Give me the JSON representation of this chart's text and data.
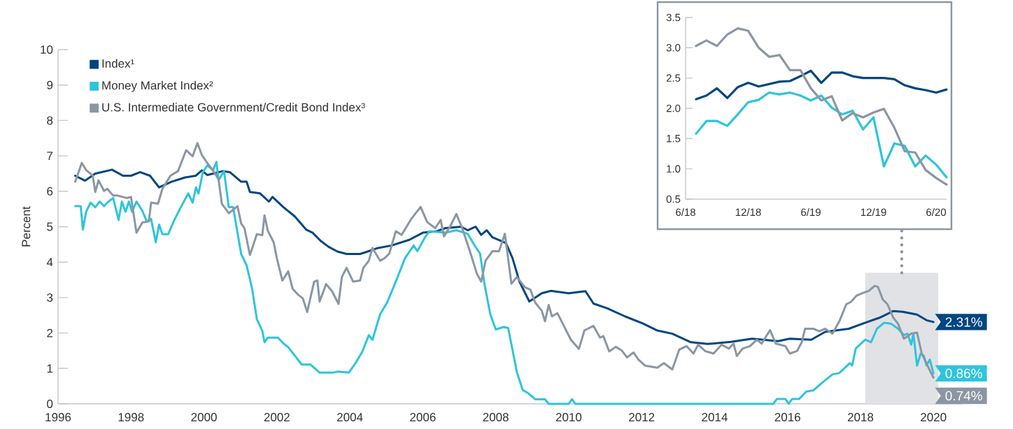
{
  "chart_data": [
    {
      "type": "line",
      "ylabel": "Percent",
      "xlim": [
        1996,
        2020.8
      ],
      "ylim": [
        0,
        10
      ],
      "xticks": [
        1996,
        1998,
        2000,
        2002,
        2004,
        2006,
        2008,
        2010,
        2012,
        2014,
        2016,
        2018,
        2020
      ],
      "yticks": [
        0,
        1,
        2,
        3,
        4,
        5,
        6,
        7,
        8,
        9,
        10
      ],
      "legend": "top left",
      "series": [
        {
          "name": "Index¹",
          "color": "#00467f",
          "x": [
            1996.47,
            1996.74,
            1997.02,
            1997.48,
            1997.78,
            1998.0,
            1998.25,
            1998.52,
            1998.77,
            1999.11,
            1999.48,
            1999.78,
            1999.94,
            2000.09,
            2000.52,
            2000.71,
            2001.02,
            2001.17,
            2001.26,
            2001.54,
            2001.78,
            2001.88,
            2002.18,
            2002.49,
            2002.8,
            2002.98,
            2003.2,
            2003.42,
            2003.66,
            2003.91,
            2004.28,
            2004.49,
            2004.77,
            2005.14,
            2005.63,
            2006.0,
            2006.37,
            2006.62,
            2007.05,
            2007.23,
            2007.45,
            2007.6,
            2007.75,
            2007.91,
            2008.28,
            2008.46,
            2008.65,
            2008.92,
            2009.26,
            2009.51,
            2010.0,
            2010.46,
            2010.68,
            2011.05,
            2011.54,
            2012.03,
            2012.43,
            2012.84,
            2013.35,
            2013.81,
            2014.45,
            2015.03,
            2015.74,
            2016.06,
            2016.65,
            2017.03,
            2017.68,
            2018.13,
            2018.52,
            2018.9,
            2019.16,
            2019.55,
            2019.81,
            2020.0
          ],
          "values": [
            6.44,
            6.3,
            6.5,
            6.61,
            6.44,
            6.44,
            6.54,
            6.44,
            6.11,
            6.27,
            6.39,
            6.44,
            6.59,
            6.46,
            6.57,
            6.54,
            6.27,
            6.27,
            5.98,
            5.94,
            5.71,
            5.84,
            5.55,
            5.29,
            4.92,
            4.83,
            4.6,
            4.43,
            4.3,
            4.23,
            4.23,
            4.3,
            4.4,
            4.47,
            4.63,
            4.83,
            4.87,
            4.96,
            5.0,
            4.9,
            5.0,
            4.77,
            4.9,
            4.7,
            4.54,
            4.11,
            3.45,
            2.89,
            3.12,
            3.19,
            3.12,
            3.18,
            2.83,
            2.7,
            2.47,
            2.27,
            2.07,
            1.98,
            1.74,
            1.69,
            1.75,
            1.84,
            1.77,
            1.84,
            1.81,
            2.03,
            2.12,
            2.29,
            2.43,
            2.62,
            2.6,
            2.52,
            2.36,
            2.31
          ],
          "value_labels": [
            null,
            null,
            null,
            null,
            null,
            null,
            null,
            null,
            null,
            null,
            null,
            null,
            null,
            null,
            null,
            null,
            null,
            null,
            null,
            null,
            null,
            null,
            null,
            null,
            null,
            null,
            null,
            null,
            null,
            null,
            null,
            null,
            null,
            null,
            null,
            null,
            null,
            null,
            null,
            null,
            null,
            null,
            null,
            null,
            null,
            null,
            null,
            null,
            null,
            null,
            null,
            null,
            null,
            null,
            null,
            null,
            null,
            null,
            null,
            null,
            null,
            null,
            null,
            null,
            null,
            null,
            null,
            null,
            null,
            null,
            null,
            null,
            null,
            "2.31%"
          ]
        },
        {
          "name": "Money Market Index²",
          "color": "#2ec4dc",
          "x": [
            1996.47,
            1996.62,
            1996.68,
            1996.77,
            1996.89,
            1997.02,
            1997.14,
            1997.26,
            1997.38,
            1997.51,
            1997.66,
            1997.75,
            1997.85,
            1997.94,
            1998.03,
            1998.15,
            1998.31,
            1998.43,
            1998.55,
            1998.68,
            1998.77,
            1998.86,
            1999.02,
            1999.17,
            1999.35,
            1999.57,
            1999.69,
            1999.78,
            1999.85,
            1999.97,
            2000.09,
            2000.25,
            2000.34,
            2000.4,
            2000.55,
            2000.68,
            2000.8,
            2001.02,
            2001.17,
            2001.32,
            2001.45,
            2001.6,
            2001.66,
            2001.75,
            2002.03,
            2002.18,
            2002.31,
            2002.68,
            2002.92,
            2003.17,
            2003.54,
            2003.66,
            2003.97,
            2004.15,
            2004.34,
            2004.52,
            2004.62,
            2004.83,
            2005.02,
            2005.26,
            2005.51,
            2005.75,
            2005.85,
            2006.06,
            2006.18,
            2006.62,
            2006.92,
            2007.23,
            2007.42,
            2007.57,
            2007.69,
            2007.85,
            2008.0,
            2008.22,
            2008.34,
            2008.58,
            2008.74,
            2008.89,
            2009.08,
            2009.35,
            2009.45,
            2010.0,
            2010.09,
            2010.18,
            2015.61,
            2015.71,
            2015.94,
            2016.03,
            2016.13,
            2016.32,
            2016.52,
            2016.71,
            2016.94,
            2017.23,
            2017.42,
            2017.71,
            2017.77,
            2017.87,
            2018.13,
            2018.29,
            2018.45,
            2018.65,
            2018.84,
            2019.03,
            2019.19,
            2019.29,
            2019.39,
            2019.45,
            2019.55,
            2019.65,
            2019.74,
            2019.81,
            2019.9,
            2020.0
          ],
          "values": [
            5.58,
            5.58,
            4.92,
            5.42,
            5.68,
            5.55,
            5.71,
            5.58,
            5.71,
            5.81,
            5.19,
            5.71,
            5.42,
            5.71,
            5.42,
            5.71,
            5.45,
            5.15,
            5.22,
            4.56,
            5.06,
            4.79,
            4.79,
            5.15,
            5.52,
            5.94,
            5.68,
            6.11,
            5.94,
            6.54,
            6.73,
            6.6,
            6.83,
            6.31,
            6.57,
            5.55,
            5.55,
            4.23,
            3.91,
            3.25,
            2.39,
            2.06,
            1.74,
            1.87,
            1.87,
            1.7,
            1.6,
            1.11,
            1.11,
            0.88,
            0.88,
            0.91,
            0.88,
            1.14,
            1.47,
            1.94,
            1.81,
            2.53,
            2.86,
            3.45,
            4.11,
            4.47,
            4.31,
            4.7,
            4.87,
            4.83,
            4.9,
            4.8,
            4.47,
            4.24,
            3.39,
            2.53,
            2.1,
            2.17,
            2.14,
            0.89,
            0.39,
            0.3,
            0.13,
            0.13,
            0,
            0,
            0.13,
            0,
            0,
            0.14,
            0.14,
            0,
            0.14,
            0.14,
            0.35,
            0.38,
            0.59,
            0.83,
            0.87,
            1.15,
            1.08,
            1.56,
            1.81,
            1.74,
            2.12,
            2.29,
            2.26,
            2.12,
            1.94,
            1.98,
            1.67,
            1.98,
            1.08,
            1.42,
            1.35,
            1.08,
            1.25,
            0.86
          ],
          "value_labels": [
            null,
            null,
            null,
            null,
            null,
            null,
            null,
            null,
            null,
            null,
            null,
            null,
            null,
            null,
            null,
            null,
            null,
            null,
            null,
            null,
            null,
            null,
            null,
            null,
            null,
            null,
            null,
            null,
            null,
            null,
            null,
            null,
            null,
            null,
            null,
            null,
            null,
            null,
            null,
            null,
            null,
            null,
            null,
            null,
            null,
            null,
            null,
            null,
            null,
            null,
            null,
            null,
            null,
            null,
            null,
            null,
            null,
            null,
            null,
            null,
            null,
            null,
            null,
            null,
            null,
            null,
            null,
            null,
            null,
            null,
            null,
            null,
            null,
            null,
            null,
            null,
            null,
            null,
            null,
            null,
            null,
            null,
            null,
            null,
            null,
            null,
            null,
            null,
            null,
            null,
            null,
            null,
            null,
            null,
            null,
            null,
            null,
            null,
            null,
            null,
            null,
            null,
            null,
            null,
            null,
            null,
            null,
            null,
            null,
            null,
            null,
            null,
            null,
            "0.86%"
          ]
        },
        {
          "name": "U.S. Intermediate Government/Credit Bond Index³",
          "color": "#8c96a3",
          "x": [
            1996.47,
            1996.65,
            1996.77,
            1996.95,
            1997.02,
            1997.11,
            1997.26,
            1997.35,
            1997.51,
            1997.63,
            1997.88,
            1998.0,
            1998.15,
            1998.31,
            1998.49,
            1998.55,
            1998.74,
            1998.86,
            1999.08,
            1999.29,
            1999.51,
            1999.69,
            1999.82,
            1999.94,
            2000.09,
            2000.28,
            2000.4,
            2000.49,
            2000.68,
            2000.92,
            2001.02,
            2001.11,
            2001.26,
            2001.45,
            2001.6,
            2001.66,
            2001.75,
            2001.91,
            2002.0,
            2002.15,
            2002.31,
            2002.43,
            2002.58,
            2002.71,
            2002.83,
            2003.02,
            2003.11,
            2003.17,
            2003.35,
            2003.51,
            2003.69,
            2003.78,
            2003.91,
            2004.09,
            2004.28,
            2004.37,
            2004.52,
            2004.62,
            2004.83,
            2004.95,
            2005.08,
            2005.26,
            2005.42,
            2005.69,
            2005.94,
            2006.12,
            2006.34,
            2006.49,
            2006.58,
            2006.74,
            2006.92,
            2007.08,
            2007.29,
            2007.48,
            2007.6,
            2007.72,
            2007.91,
            2008.09,
            2008.25,
            2008.43,
            2008.58,
            2008.8,
            2008.95,
            2009.08,
            2009.26,
            2009.35,
            2009.45,
            2009.54,
            2009.69,
            2010.06,
            2010.28,
            2010.43,
            2010.68,
            2010.86,
            2010.95,
            2011.11,
            2011.29,
            2011.45,
            2011.6,
            2011.78,
            2011.91,
            2012.09,
            2012.43,
            2012.61,
            2012.84,
            2013.03,
            2013.23,
            2013.42,
            2013.55,
            2013.74,
            2013.97,
            2014.19,
            2014.39,
            2014.52,
            2014.61,
            2014.77,
            2014.97,
            2015.16,
            2015.29,
            2015.52,
            2015.68,
            2015.94,
            2016.06,
            2016.26,
            2016.39,
            2016.48,
            2016.71,
            2016.87,
            2017.03,
            2017.23,
            2017.42,
            2017.61,
            2017.74,
            2017.9,
            2018.06,
            2018.23,
            2018.39,
            2018.48,
            2018.61,
            2018.74,
            2018.9,
            2019.03,
            2019.19,
            2019.29,
            2019.39,
            2019.55,
            2019.68,
            2019.87,
            2020.0
          ],
          "values": [
            6.27,
            6.8,
            6.6,
            6.44,
            5.98,
            6.31,
            6.01,
            6.07,
            5.88,
            5.88,
            5.81,
            5.84,
            4.83,
            5.12,
            5.15,
            5.68,
            5.65,
            6.07,
            6.44,
            6.57,
            7.16,
            6.99,
            7.36,
            7.03,
            6.8,
            6.54,
            6.34,
            5.65,
            5.38,
            5.58,
            5.09,
            4.96,
            4.2,
            4.79,
            4.76,
            5.32,
            4.89,
            4.56,
            4.1,
            3.48,
            3.74,
            3.25,
            3.08,
            2.98,
            2.59,
            3.45,
            3.48,
            2.89,
            3.38,
            3.18,
            2.82,
            3.58,
            3.84,
            3.45,
            3.48,
            3.84,
            4.04,
            4.4,
            4.04,
            4.11,
            4.24,
            4.87,
            4.77,
            5.23,
            5.56,
            5.13,
            4.96,
            5.19,
            4.73,
            4.99,
            5.36,
            4.96,
            4.31,
            3.68,
            3.45,
            4.04,
            4.31,
            4.31,
            4.8,
            3.39,
            3.58,
            3.29,
            3.22,
            2.86,
            2.63,
            2.33,
            2.79,
            2.47,
            2.56,
            1.81,
            1.55,
            2.07,
            2.2,
            1.87,
            1.91,
            1.48,
            1.61,
            1.51,
            1.31,
            1.45,
            1.25,
            1.08,
            1.02,
            1.15,
            0.97,
            1.53,
            1.63,
            1.42,
            1.67,
            1.49,
            1.42,
            1.67,
            1.56,
            1.7,
            1.35,
            1.56,
            1.63,
            1.81,
            1.7,
            2.08,
            1.7,
            1.63,
            1.42,
            1.49,
            1.74,
            2.12,
            2.12,
            2.05,
            2.12,
            1.98,
            2.33,
            2.81,
            2.88,
            3.06,
            3.13,
            3.19,
            3.33,
            3.3,
            2.95,
            2.81,
            2.43,
            2.26,
            1.84,
            1.91,
            1.98,
            2.01,
            1.42,
            1.01,
            0.74
          ],
          "value_labels": [
            null,
            null,
            null,
            null,
            null,
            null,
            null,
            null,
            null,
            null,
            null,
            null,
            null,
            null,
            null,
            null,
            null,
            null,
            null,
            null,
            null,
            null,
            null,
            null,
            null,
            null,
            null,
            null,
            null,
            null,
            null,
            null,
            null,
            null,
            null,
            null,
            null,
            null,
            null,
            null,
            null,
            null,
            null,
            null,
            null,
            null,
            null,
            null,
            null,
            null,
            null,
            null,
            null,
            null,
            null,
            null,
            null,
            null,
            null,
            null,
            null,
            null,
            null,
            null,
            null,
            null,
            null,
            null,
            null,
            null,
            null,
            null,
            null,
            null,
            null,
            null,
            null,
            null,
            null,
            null,
            null,
            null,
            null,
            null,
            null,
            null,
            null,
            null,
            null,
            null,
            null,
            null,
            null,
            null,
            null,
            null,
            null,
            null,
            null,
            null,
            null,
            null,
            null,
            null,
            null,
            null,
            null,
            null,
            null,
            null,
            null,
            null,
            null,
            null,
            null,
            null,
            null,
            null,
            null,
            null,
            null,
            null,
            null,
            null,
            null,
            null,
            null,
            null,
            null,
            null,
            null,
            null,
            null,
            null,
            null,
            null,
            null,
            null,
            null,
            null,
            null,
            null,
            null,
            null,
            null,
            null,
            null,
            null,
            "0.74%"
          ]
        }
      ],
      "bands": [
        {
          "axis": "x",
          "from": 2018.13,
          "to": 2020.13,
          "color": "#e1e2e6"
        }
      ]
    },
    {
      "type": "line",
      "x": [
        "2018-07",
        "2018-08",
        "2018-09",
        "2018-10",
        "2018-11",
        "2018-12",
        "2019-01",
        "2019-02",
        "2019-03",
        "2019-04",
        "2019-05",
        "2019-06",
        "2019-07",
        "2019-08",
        "2019-09",
        "2019-10",
        "2019-11",
        "2019-12",
        "2020-01",
        "2020-02",
        "2020-03",
        "2020-04",
        "2020-05",
        "2020-06",
        "2020-07"
      ],
      "xlim": [
        "2018-06",
        "2020-07"
      ],
      "ylim": [
        0.5,
        3.5
      ],
      "xticks": [
        {
          "value": "2018-06",
          "label": "6/18"
        },
        {
          "value": "2018-12",
          "label": "12/18"
        },
        {
          "value": "2019-06",
          "label": "6/19"
        },
        {
          "value": "2019-12",
          "label": "12/19"
        },
        {
          "value": "2020-06",
          "label": "6/20"
        }
      ],
      "yticks": [
        {
          "value": 0.5,
          "label": "0.5"
        },
        {
          "value": 1,
          "label": "1.0"
        },
        {
          "value": 1.5,
          "label": "1.5"
        },
        {
          "value": 2,
          "label": "2.0"
        },
        {
          "value": 2.5,
          "label": "2.5"
        },
        {
          "value": 3,
          "label": "3.0"
        },
        {
          "value": 3.5,
          "label": "3.5"
        }
      ],
      "series": [
        {
          "color": "#00467f",
          "values": [
            2.15,
            2.21,
            2.33,
            2.17,
            2.35,
            2.42,
            2.36,
            2.4,
            2.44,
            2.45,
            2.53,
            2.62,
            2.42,
            2.59,
            2.59,
            2.53,
            2.5,
            2.5,
            2.5,
            2.48,
            2.38,
            2.33,
            2.3,
            2.26,
            2.31
          ]
        },
        {
          "color": "#2ec4dc",
          "values": [
            1.58,
            1.79,
            1.79,
            1.71,
            1.9,
            2.1,
            2.14,
            2.26,
            2.23,
            2.26,
            2.21,
            2.13,
            2.21,
            2.01,
            1.9,
            1.96,
            1.65,
            1.85,
            1.04,
            1.42,
            1.38,
            1.04,
            1.22,
            1.07,
            0.86
          ]
        },
        {
          "color": "#8c96a3",
          "values": [
            3.03,
            3.12,
            3.03,
            3.22,
            3.32,
            3.28,
            3.0,
            2.85,
            2.88,
            2.63,
            2.63,
            2.33,
            2.13,
            2.2,
            1.8,
            1.92,
            1.85,
            1.93,
            1.99,
            1.68,
            1.29,
            1.27,
            0.98,
            0.85,
            0.74
          ]
        }
      ]
    }
  ]
}
